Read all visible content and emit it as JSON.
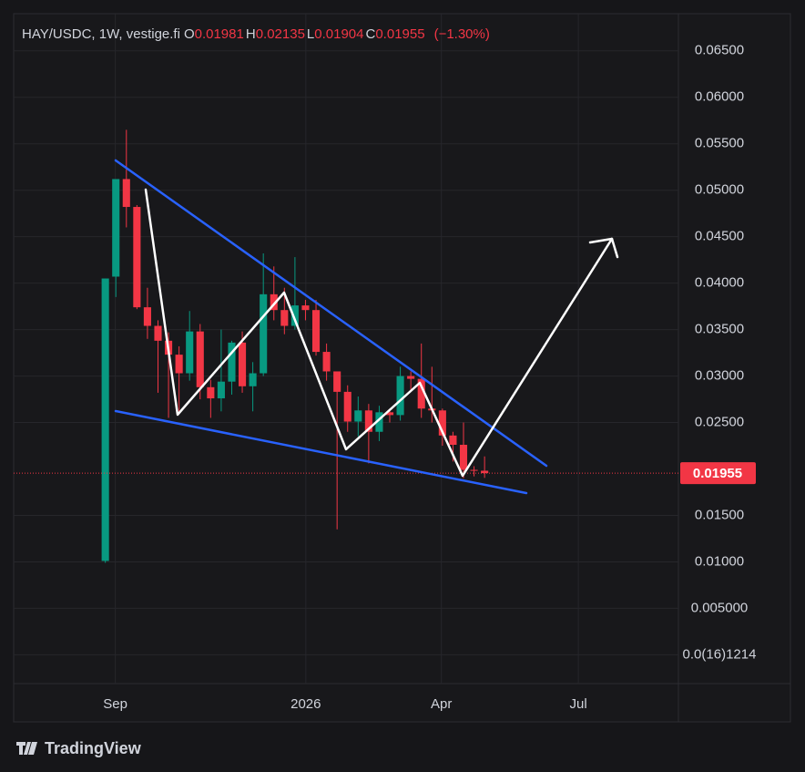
{
  "chart_data": {
    "type": "candlestick",
    "title": "HAY/USDC, 1W, vestige.fi",
    "ohlc_prefixes": [
      "O",
      "H",
      "L",
      "C"
    ],
    "change_label": "(−1.30%)",
    "brand": "TradingView",
    "up_color": "#089981",
    "down_color": "#f23645",
    "open": [
      0.0101,
      0.0407,
      0.0512,
      0.0482,
      0.0374,
      0.0354,
      0.0338,
      0.0323,
      0.0303,
      0.0348,
      0.0288,
      0.0276,
      0.0294,
      0.0336,
      0.0289,
      0.0303,
      0.0388,
      0.0371,
      0.0354,
      0.0376,
      0.0371,
      0.0326,
      0.0305,
      0.0283,
      0.0251,
      0.0263,
      0.024,
      0.0261,
      0.0258,
      0.03,
      0.0297,
      0.0265,
      0.0263,
      0.0236,
      0.0226,
      0.0199,
      0.01981
    ],
    "high": [
      0.0405,
      0.0512,
      0.0565,
      0.0484,
      0.0395,
      0.036,
      0.0347,
      0.0332,
      0.037,
      0.0356,
      0.0296,
      0.035,
      0.0338,
      0.0348,
      0.0315,
      0.0432,
      0.0418,
      0.0395,
      0.0428,
      0.0382,
      0.0382,
      0.0335,
      0.0305,
      0.029,
      0.0278,
      0.027,
      0.0268,
      0.0265,
      0.031,
      0.0305,
      0.0335,
      0.031,
      0.0265,
      0.024,
      0.025,
      0.0203,
      0.02135
    ],
    "low": [
      0.0099,
      0.0385,
      0.046,
      0.0372,
      0.034,
      0.0282,
      0.0255,
      0.0262,
      0.0295,
      0.0275,
      0.0255,
      0.0262,
      0.028,
      0.0282,
      0.0262,
      0.03,
      0.036,
      0.0345,
      0.035,
      0.036,
      0.0322,
      0.0295,
      0.0135,
      0.024,
      0.0235,
      0.0206,
      0.023,
      0.025,
      0.0252,
      0.0285,
      0.0255,
      0.025,
      0.0225,
      0.0208,
      0.019,
      0.0192,
      0.01904
    ],
    "close": [
      0.0405,
      0.0512,
      0.0482,
      0.0374,
      0.0354,
      0.0338,
      0.0323,
      0.0303,
      0.0348,
      0.0288,
      0.0276,
      0.0294,
      0.0336,
      0.0289,
      0.0303,
      0.0388,
      0.0371,
      0.0354,
      0.0376,
      0.0371,
      0.0326,
      0.0305,
      0.0283,
      0.0251,
      0.0263,
      0.024,
      0.0261,
      0.0258,
      0.03,
      0.0297,
      0.0265,
      0.0263,
      0.0236,
      0.0226,
      0.0199,
      0.0198,
      0.01955
    ],
    "xlim": [
      -8.7,
      54.4
    ],
    "xticks": [
      {
        "value": 0.95,
        "label": "Sep"
      },
      {
        "value": 19.03,
        "label": "2026"
      },
      {
        "value": 31.9,
        "label": "Apr"
      },
      {
        "value": 44.9,
        "label": "Jul"
      }
    ],
    "ylim": [
      -0.0031,
      0.069
    ],
    "yticks": [
      {
        "value": 0.065,
        "label": "0.06500"
      },
      {
        "value": 0.06,
        "label": "0.06000"
      },
      {
        "value": 0.055,
        "label": "0.05500"
      },
      {
        "value": 0.05,
        "label": "0.05000"
      },
      {
        "value": 0.045,
        "label": "0.04500"
      },
      {
        "value": 0.04,
        "label": "0.04000"
      },
      {
        "value": 0.035,
        "label": "0.03500"
      },
      {
        "value": 0.03,
        "label": "0.03000"
      },
      {
        "value": 0.025,
        "label": "0.02500"
      },
      {
        "value": 0.015,
        "label": "0.01500"
      },
      {
        "value": 0.01,
        "label": "0.01000"
      },
      {
        "value": 0.005,
        "label": "0.005000"
      },
      {
        "value": 1.214e-17,
        "label": "0.0(16)1214"
      }
    ],
    "grid": true
  }
}
